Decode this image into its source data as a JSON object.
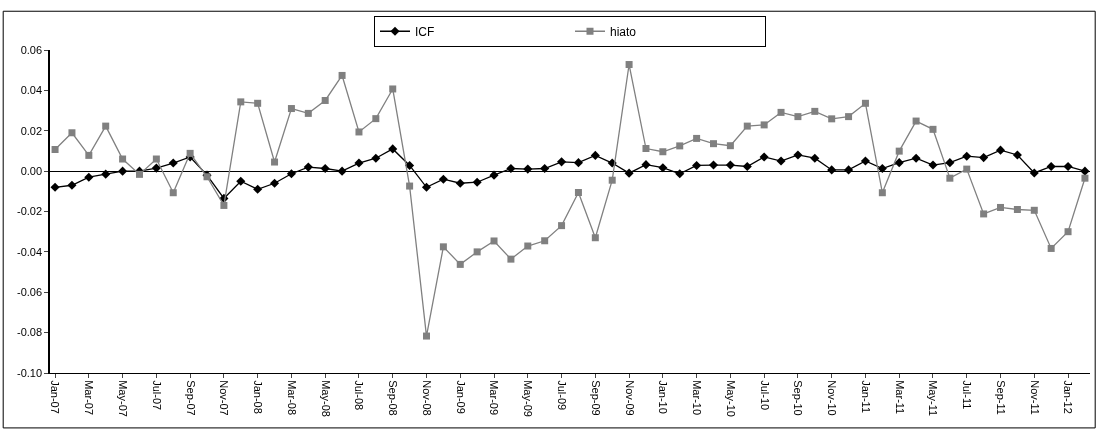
{
  "chart_data": {
    "type": "line",
    "categories": [
      "Jan-07",
      null,
      "Mar-07",
      null,
      "May-07",
      null,
      "Jul-07",
      null,
      "Sep-07",
      null,
      "Nov-07",
      null,
      "Jan-08",
      null,
      "Mar-08",
      null,
      "May-08",
      null,
      "Jul-08",
      null,
      "Sep-08",
      null,
      "Nov-08",
      null,
      "Jan-09",
      null,
      "Mar-09",
      null,
      "May-09",
      null,
      "Jul-09",
      null,
      "Sep-09",
      null,
      "Nov-09",
      null,
      "Jan-10",
      null,
      "Mar-10",
      null,
      "May-10",
      null,
      "Jul-10",
      null,
      "Sep-10",
      null,
      "Nov-10",
      null,
      "Jan-11",
      null,
      "Mar-11",
      null,
      "May-11",
      null,
      "Jul-11",
      null,
      "Sep-11",
      null,
      "Nov-11",
      null,
      "Jan-12",
      null
    ],
    "series": [
      {
        "name": "ICF",
        "color": "#000000",
        "marker": "diamond",
        "values": [
          -0.008,
          -0.007,
          -0.003,
          -0.0015,
          0.0,
          0.0,
          0.0015,
          0.004,
          0.007,
          -0.002,
          -0.0135,
          -0.005,
          -0.009,
          -0.006,
          -0.0013,
          0.002,
          0.0013,
          0.0,
          0.004,
          0.0064,
          0.011,
          0.0028,
          -0.008,
          -0.004,
          -0.006,
          -0.0055,
          -0.002,
          0.0013,
          0.001,
          0.0013,
          0.0046,
          0.0042,
          0.0078,
          0.004,
          -0.001,
          0.0032,
          0.0017,
          -0.0013,
          0.0028,
          0.003,
          0.003,
          0.0023,
          0.007,
          0.005,
          0.008,
          0.0064,
          0.0006,
          0.0006,
          0.005,
          0.0013,
          0.0042,
          0.0064,
          0.003,
          0.0042,
          0.0074,
          0.0067,
          0.0104,
          0.008,
          -0.0009,
          0.0023,
          0.0023,
          0.0
        ]
      },
      {
        "name": "hiato",
        "color": "#808080",
        "marker": "square",
        "values": [
          0.0107,
          0.019,
          0.0078,
          0.0223,
          0.006,
          -0.0016,
          0.006,
          -0.0107,
          0.0088,
          -0.0028,
          -0.017,
          0.0343,
          0.0336,
          0.0045,
          0.031,
          0.0286,
          0.035,
          0.0474,
          0.0194,
          0.026,
          0.0407,
          -0.0074,
          -0.0817,
          -0.0375,
          -0.0462,
          -0.04,
          -0.0346,
          -0.0436,
          -0.0371,
          -0.0345,
          -0.027,
          -0.0106,
          -0.033,
          -0.0045,
          0.0528,
          0.0112,
          0.0096,
          0.0125,
          0.0162,
          0.0136,
          0.0126,
          0.0223,
          0.0229,
          0.0291,
          0.027,
          0.0296,
          0.0259,
          0.027,
          0.0336,
          -0.0107,
          0.0099,
          0.0248,
          0.0207,
          -0.0035,
          0.001,
          -0.0212,
          -0.018,
          -0.019,
          -0.0194,
          -0.0383,
          -0.03,
          -0.0035
        ]
      }
    ],
    "ylim": [
      -0.1,
      0.06
    ],
    "yticks": [
      {
        "value": -0.1,
        "label": "-0.10"
      },
      {
        "value": -0.08,
        "label": "-0.08"
      },
      {
        "value": -0.06,
        "label": "-0.06"
      },
      {
        "value": -0.04,
        "label": "-0.04"
      },
      {
        "value": -0.02,
        "label": "-0.02"
      },
      {
        "value": 0,
        "label": "0.00"
      },
      {
        "value": 0.02,
        "label": "0.02"
      },
      {
        "value": 0.04,
        "label": "0.04"
      },
      {
        "value": 0.06,
        "label": "0.06"
      }
    ],
    "legend": "top",
    "line_style": "solid"
  }
}
